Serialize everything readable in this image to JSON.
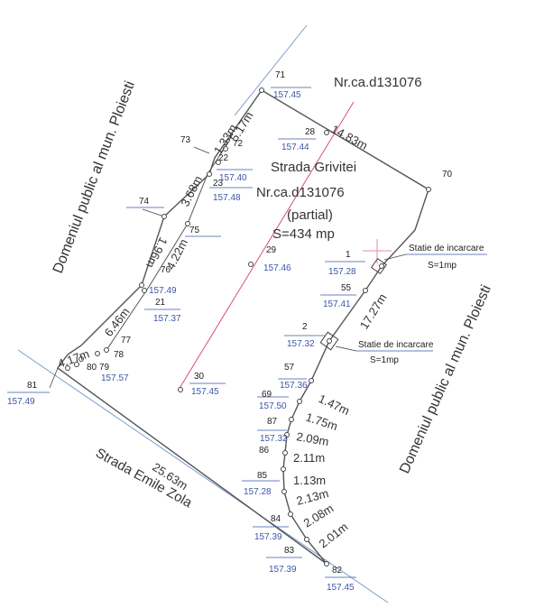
{
  "labels": {
    "cadastral_top": "Nr.ca.d131076",
    "domain_left": "Domeniul public al mun. Ploiesti",
    "domain_right": "Domeniul public al mun. Ploiesti",
    "street_main": "Strada Grivitei",
    "cadastral_center": "Nr.ca.d131076",
    "partial": "(partial)",
    "area": "S=434 mp",
    "street_bottom": "Strada Emile Zola",
    "station1": "Statie de incarcare",
    "station1_area": "S=1mp",
    "station2": "Statie de incarcare",
    "station2_area": "S=1mp"
  },
  "points": {
    "p71": {
      "id": "71",
      "elev": "157.45"
    },
    "p28": {
      "id": "28",
      "elev": "157.44"
    },
    "p70": {
      "id": "70"
    },
    "p73": {
      "id": "73"
    },
    "p72": {
      "id": "72"
    },
    "p22": {
      "id": "22",
      "elev": "157.40"
    },
    "p23": {
      "id": "23",
      "elev": "157.48"
    },
    "p74": {
      "id": "74"
    },
    "p75": {
      "id": "75"
    },
    "p29": {
      "id": "29",
      "elev": "157.46"
    },
    "p1": {
      "id": "1",
      "elev": "157.28"
    },
    "p55": {
      "id": "55",
      "elev": "157.41"
    },
    "p76": {
      "id": "76",
      "elev": "157.49"
    },
    "p21": {
      "id": "21",
      "elev": "157.37"
    },
    "p2": {
      "id": "2",
      "elev": "157.32"
    },
    "p77": {
      "id": "77"
    },
    "p78": {
      "id": "78"
    },
    "p80": {
      "id": "80"
    },
    "p79": {
      "id": "79",
      "elev": "157.57"
    },
    "p81": {
      "id": "81",
      "elev": "157.49"
    },
    "p30": {
      "id": "30",
      "elev": "157.45"
    },
    "p57": {
      "id": "57",
      "elev": "157.36"
    },
    "p69": {
      "id": "69",
      "elev": "157.50"
    },
    "p87": {
      "id": "87",
      "elev": "157.32"
    },
    "p86": {
      "id": "86"
    },
    "p85": {
      "id": "85",
      "elev": "157.28"
    },
    "p84": {
      "id": "84",
      "elev": "157.39"
    },
    "p83": {
      "id": "83",
      "elev": "157.39"
    },
    "p82": {
      "id": "82",
      "elev": "157.45"
    }
  },
  "dimensions": {
    "d1": "14.83m",
    "d2": "5.17m",
    "d3": "1.33m",
    "d4": "3.68m",
    "d5": "4.22m",
    "d6": "6.46m",
    "d7": "4.17m",
    "d8": "17.27m",
    "d9": "1.47m",
    "d10": "1.75m",
    "d11": "2.09m",
    "d12": "2.11m",
    "d13": "1.13m",
    "d14": "2.13m",
    "d15": "2.08m",
    "d16": "2.01m",
    "d17": "25.63m",
    "d18": "1.96m"
  },
  "colors": {
    "line": "#555555",
    "pink": "#d9506b",
    "blue_road": "#7a9bd0",
    "elevation": "#3a57a6"
  }
}
